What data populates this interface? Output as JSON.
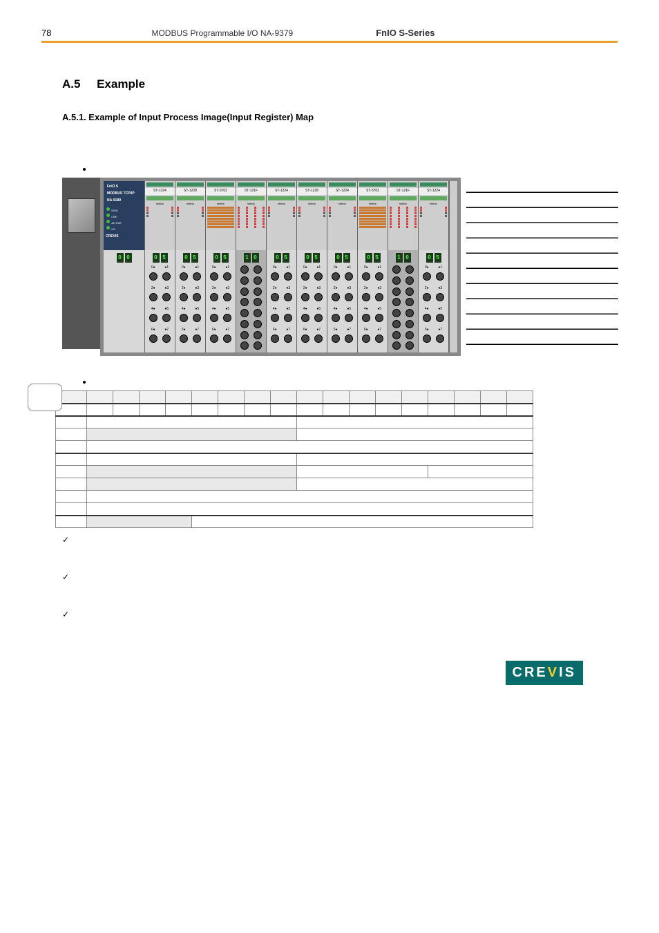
{
  "header": {
    "pageNumber": "78",
    "title": "MODBUS Programmable I/O NA-9379",
    "series": "FnIO  S-Series"
  },
  "section": {
    "number": "A.5",
    "title": "Example",
    "subsection": "A.5.1. Example  of  Input  Process  Image(Input  Register)  Map"
  },
  "module_rack": {
    "header_label": "FnIO S",
    "header_sublabel1": "MODBUS TCP/IP",
    "header_sublabel2": "NA-9189",
    "status_leds": [
      "MOD",
      "LNK",
      "ACTIVE",
      "I/O"
    ],
    "crevis_label": "CREVIS",
    "modules": [
      {
        "label": "ST-1224",
        "status": "status",
        "type": "digital"
      },
      {
        "label": "ST-1228",
        "status": "status",
        "type": "digital"
      },
      {
        "label": "ST-3702",
        "status": "status",
        "type": "analog_orange"
      },
      {
        "label": "ST-121F",
        "status": "status",
        "type": "multi_led"
      },
      {
        "label": "ST-1224",
        "status": "status",
        "type": "digital"
      },
      {
        "label": "ST-1228",
        "status": "status",
        "type": "digital"
      },
      {
        "label": "ST-1224",
        "status": "status",
        "type": "digital"
      },
      {
        "label": "ST-3702",
        "status": "status",
        "type": "analog_orange"
      },
      {
        "label": "ST-121F",
        "status": "status",
        "type": "multi_led"
      },
      {
        "label": "ST-1224",
        "status": "status",
        "type": "digital"
      }
    ],
    "digit_displays": [
      [
        "0",
        "0"
      ],
      [
        "0",
        "5"
      ],
      [
        "0",
        "5"
      ],
      [
        "0",
        "5"
      ],
      [
        "1",
        "0"
      ],
      [
        "0",
        "5"
      ],
      [
        "0",
        "5"
      ],
      [
        "0",
        "5"
      ],
      [
        "0",
        "5"
      ],
      [
        "1",
        "0"
      ],
      [
        "0",
        "5"
      ]
    ],
    "terminal_rows_per_module": 4,
    "wide_terminal_modules": [
      3,
      8
    ]
  },
  "side_table": {
    "rows": 11,
    "cols": 2
  },
  "bit_table": {
    "header_rows": 2,
    "data_rows": 9,
    "structure": [
      {
        "cols": 18,
        "type": "header"
      },
      {
        "cols": 18,
        "type": "header_narrow"
      },
      {
        "left_span": 9,
        "right_span": 9
      },
      {
        "left_span": 9,
        "right_span": 9,
        "left_shaded": true
      },
      {
        "full_span": true
      },
      {
        "left_span": 9,
        "right_span": 9
      },
      {
        "left_span": 9,
        "right_span": 9,
        "left_shaded": true,
        "right_narrow": 4
      },
      {
        "left_span": 9,
        "right_span": 9,
        "left_shaded": true
      },
      {
        "full_span": true
      },
      {
        "full_span": true
      },
      {
        "left_span": 5,
        "right_span": 13,
        "left_shaded": true
      }
    ]
  },
  "footer_logo": "CREVIS",
  "colors": {
    "accent": "#e8a028",
    "logo_bg": "#0a6b6b",
    "logo_yellow": "#f0d030"
  }
}
